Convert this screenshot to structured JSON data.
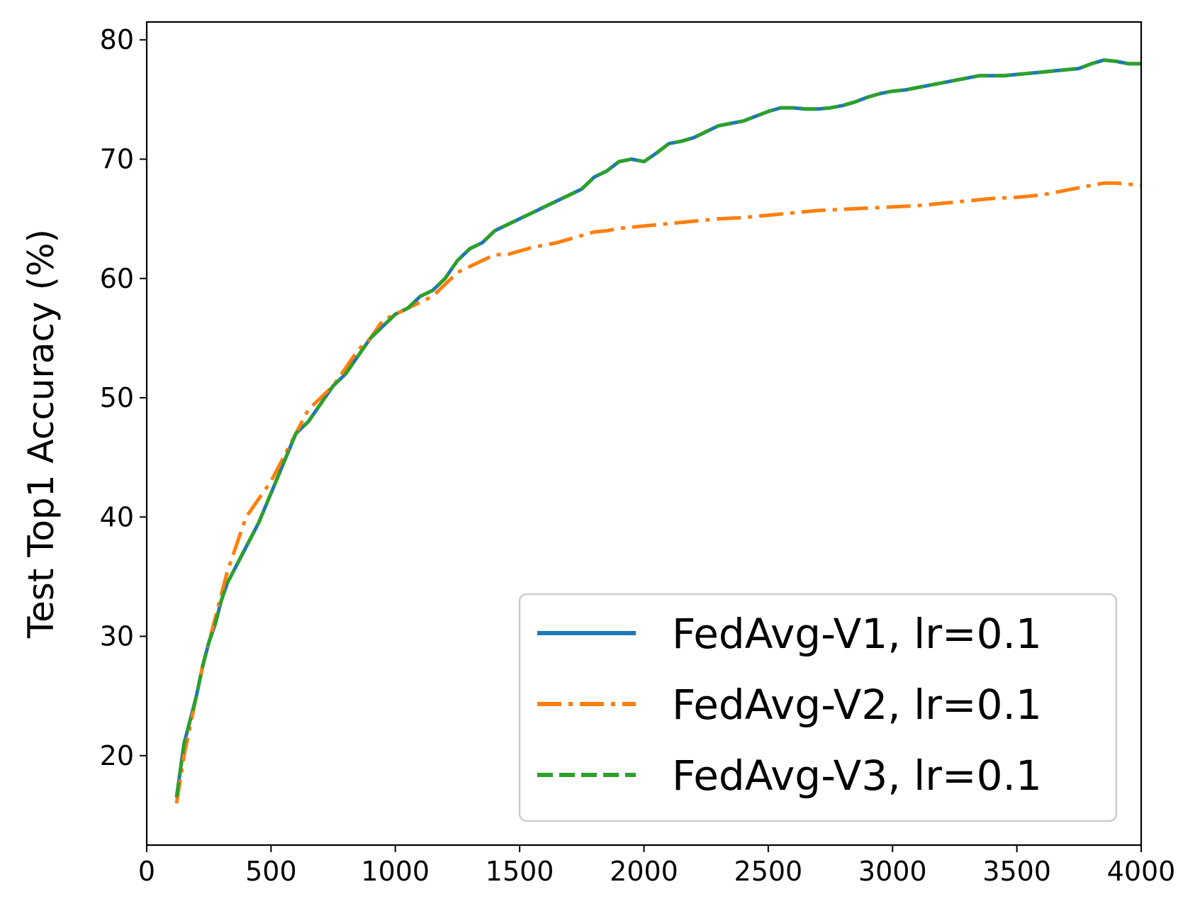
{
  "chart_data": {
    "type": "line",
    "title": "",
    "xlabel": "",
    "ylabel": "Test Top1 Accuracy (%)",
    "xlim": [
      0,
      4000
    ],
    "ylim": [
      12.5,
      81.5
    ],
    "xticks": [
      "0",
      "500",
      "1000",
      "1500",
      "2000",
      "2500",
      "3000",
      "3500",
      "4000"
    ],
    "yticks": [
      "20",
      "30",
      "40",
      "50",
      "60",
      "70",
      "80"
    ],
    "grid": false,
    "legend_position": "lower right",
    "series": [
      {
        "name": "FedAvg-V1, lr=0.1",
        "color": "#1f77b4",
        "style": "solid",
        "x": [
          120,
          150,
          175,
          200,
          225,
          250,
          275,
          300,
          325,
          350,
          375,
          400,
          450,
          500,
          550,
          600,
          650,
          700,
          750,
          800,
          850,
          900,
          950,
          1000,
          1050,
          1100,
          1150,
          1200,
          1250,
          1300,
          1350,
          1400,
          1450,
          1500,
          1550,
          1600,
          1650,
          1700,
          1750,
          1800,
          1850,
          1900,
          1950,
          2000,
          2050,
          2100,
          2150,
          2200,
          2250,
          2300,
          2350,
          2400,
          2450,
          2500,
          2550,
          2600,
          2650,
          2700,
          2750,
          2800,
          2850,
          2900,
          2950,
          3000,
          3050,
          3100,
          3150,
          3200,
          3250,
          3300,
          3350,
          3400,
          3450,
          3500,
          3550,
          3600,
          3650,
          3700,
          3750,
          3800,
          3850,
          3900,
          3950,
          4000
        ],
        "values": [
          16.5,
          21,
          23,
          25,
          27.5,
          29.5,
          31,
          33,
          34.5,
          35.5,
          36.5,
          37.5,
          39.5,
          42,
          44.5,
          47,
          48,
          49.5,
          51,
          52,
          53.5,
          55,
          56,
          57,
          57.5,
          58.5,
          59,
          60,
          61.5,
          62.5,
          63,
          64,
          64.5,
          65,
          65.5,
          66,
          66.5,
          67,
          67.5,
          68.5,
          69,
          69.8,
          70,
          69.8,
          70.5,
          71.3,
          71.5,
          71.8,
          72.3,
          72.8,
          73,
          73.2,
          73.6,
          74,
          74.3,
          74.3,
          74.2,
          74.2,
          74.3,
          74.5,
          74.8,
          75.2,
          75.5,
          75.7,
          75.8,
          76,
          76.2,
          76.4,
          76.6,
          76.8,
          77,
          77,
          77,
          77.1,
          77.2,
          77.3,
          77.4,
          77.5,
          77.6,
          78,
          78.3,
          78.2,
          78,
          78
        ]
      },
      {
        "name": "FedAvg-V2, lr=0.1",
        "color": "#ff7f0e",
        "style": "dashdot",
        "x": [
          120,
          150,
          175,
          200,
          225,
          250,
          275,
          300,
          325,
          350,
          375,
          400,
          450,
          500,
          550,
          600,
          650,
          700,
          750,
          800,
          850,
          900,
          950,
          1000,
          1050,
          1100,
          1150,
          1200,
          1250,
          1300,
          1350,
          1400,
          1450,
          1500,
          1550,
          1600,
          1650,
          1700,
          1750,
          1800,
          1850,
          1900,
          1950,
          2000,
          2100,
          2200,
          2300,
          2400,
          2500,
          2600,
          2700,
          2800,
          2900,
          3000,
          3100,
          3200,
          3300,
          3400,
          3500,
          3600,
          3700,
          3800,
          3850,
          3900,
          3950,
          4000
        ],
        "values": [
          16,
          20,
          22.5,
          25,
          27.5,
          29.5,
          31.5,
          33.5,
          35.5,
          37,
          38.5,
          40,
          41.5,
          43,
          45,
          47,
          49,
          50,
          51,
          52.5,
          54,
          55,
          56.5,
          57,
          57.5,
          58,
          58.5,
          59.5,
          60.5,
          61,
          61.5,
          62,
          62,
          62.3,
          62.6,
          62.8,
          63,
          63.3,
          63.6,
          63.9,
          64,
          64.2,
          64.3,
          64.4,
          64.6,
          64.8,
          65,
          65.1,
          65.3,
          65.5,
          65.7,
          65.8,
          65.9,
          66,
          66.1,
          66.3,
          66.5,
          66.7,
          66.8,
          67,
          67.4,
          67.8,
          68,
          68,
          67.9,
          67.8
        ]
      },
      {
        "name": "FedAvg-V3, lr=0.1",
        "color": "#2ca02c",
        "style": "dashed",
        "x": [
          120,
          150,
          175,
          200,
          225,
          250,
          275,
          300,
          325,
          350,
          375,
          400,
          450,
          500,
          550,
          600,
          650,
          700,
          750,
          800,
          850,
          900,
          950,
          1000,
          1050,
          1100,
          1150,
          1200,
          1250,
          1300,
          1350,
          1400,
          1450,
          1500,
          1550,
          1600,
          1650,
          1700,
          1750,
          1800,
          1850,
          1900,
          1950,
          2000,
          2050,
          2100,
          2150,
          2200,
          2250,
          2300,
          2350,
          2400,
          2450,
          2500,
          2550,
          2600,
          2650,
          2700,
          2750,
          2800,
          2850,
          2900,
          2950,
          3000,
          3050,
          3100,
          3150,
          3200,
          3250,
          3300,
          3350,
          3400,
          3450,
          3500,
          3550,
          3600,
          3650,
          3700,
          3750,
          3800,
          3850,
          3900,
          3950,
          4000
        ],
        "values": [
          16.5,
          21,
          23,
          25,
          27.5,
          29.5,
          31,
          33,
          34.5,
          35.5,
          36.5,
          37.5,
          39.5,
          42,
          44.5,
          47,
          48,
          49.5,
          51,
          52,
          53.5,
          55,
          56,
          57,
          57.5,
          58.5,
          59,
          60,
          61.5,
          62.5,
          63,
          64,
          64.5,
          65,
          65.5,
          66,
          66.5,
          67,
          67.5,
          68.5,
          69,
          69.8,
          70,
          69.8,
          70.5,
          71.3,
          71.5,
          71.8,
          72.3,
          72.8,
          73,
          73.2,
          73.6,
          74,
          74.3,
          74.3,
          74.2,
          74.2,
          74.3,
          74.5,
          74.8,
          75.2,
          75.5,
          75.7,
          75.8,
          76,
          76.2,
          76.4,
          76.6,
          76.8,
          77,
          77,
          77,
          77.1,
          77.2,
          77.3,
          77.4,
          77.5,
          77.6,
          78,
          78.3,
          78.2,
          78,
          78
        ]
      }
    ]
  }
}
